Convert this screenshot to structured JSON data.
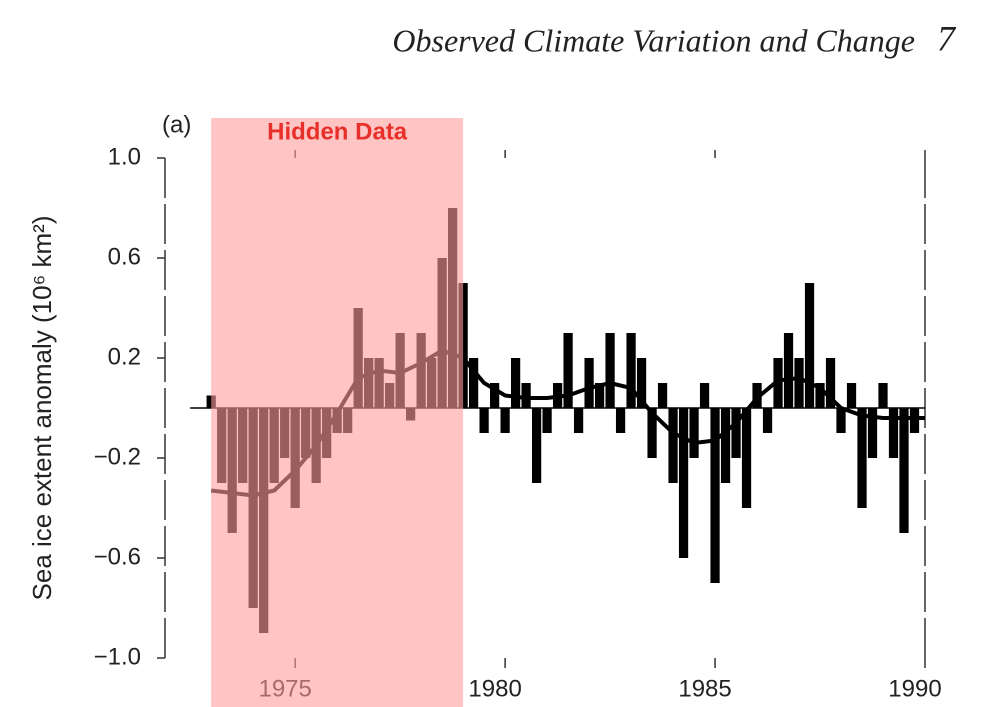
{
  "chart_data": {
    "type": "bar",
    "header": "Observed Climate Variation and Change",
    "page_number": "7",
    "panel_label": "(a)",
    "y_label": "Sea ice extent anomaly (10⁶ km²)",
    "xlim": [
      1971.9,
      1990
    ],
    "ylim": [
      -1,
      1
    ],
    "xticks": [
      1975,
      1980,
      1985,
      1990
    ],
    "yticks": [
      {
        "value": 1,
        "label": "1.0"
      },
      0.6,
      0.2,
      {
        "value": -0.2,
        "label": "−0.2"
      },
      {
        "value": -0.6,
        "label": "−0.6"
      },
      {
        "value": -1,
        "label": "−1.0"
      }
    ],
    "color": "#000000",
    "x": [
      1973,
      1973.25,
      1973.5,
      1973.75,
      1974,
      1974.25,
      1974.5,
      1974.75,
      1975,
      1975.25,
      1975.5,
      1975.75,
      1976,
      1976.25,
      1976.5,
      1976.75,
      1977,
      1977.25,
      1977.5,
      1977.75,
      1978,
      1978.25,
      1978.5,
      1978.75,
      1979,
      1979.25,
      1979.5,
      1979.75,
      1980,
      1980.25,
      1980.5,
      1980.75,
      1981,
      1981.25,
      1981.5,
      1981.75,
      1982,
      1982.25,
      1982.5,
      1982.75,
      1983,
      1983.25,
      1983.5,
      1983.75,
      1984,
      1984.25,
      1984.5,
      1984.75,
      1985,
      1985.25,
      1985.5,
      1985.75,
      1986,
      1986.25,
      1986.5,
      1986.75,
      1987,
      1987.25,
      1987.5,
      1987.75,
      1988,
      1988.25,
      1988.5,
      1988.75,
      1989,
      1989.25,
      1989.5,
      1989.75
    ],
    "values": [
      0.05,
      -0.3,
      -0.5,
      -0.3,
      -0.8,
      -0.9,
      -0.3,
      -0.2,
      -0.4,
      -0.2,
      -0.3,
      -0.2,
      -0.1,
      -0.1,
      0.4,
      0.2,
      0.2,
      0.1,
      0.3,
      -0.05,
      0.3,
      0.2,
      0.6,
      0.8,
      0.5,
      0.2,
      -0.1,
      0.1,
      -0.1,
      0.2,
      0.1,
      -0.3,
      -0.1,
      0.1,
      0.3,
      -0.1,
      0.2,
      0.1,
      0.3,
      -0.1,
      0.3,
      0.2,
      -0.2,
      0.1,
      -0.3,
      -0.6,
      -0.2,
      0.1,
      -0.7,
      -0.3,
      -0.2,
      -0.4,
      0.1,
      -0.1,
      0.2,
      0.3,
      0.2,
      0.5,
      0.1,
      0.2,
      -0.1,
      0.1,
      -0.4,
      -0.2,
      0.1,
      -0.2,
      -0.5,
      -0.1
    ],
    "smooth": {
      "color": "#000000",
      "x": [
        1973,
        1973.5,
        1974,
        1974.5,
        1975,
        1975.5,
        1976,
        1976.5,
        1977,
        1977.5,
        1978,
        1978.5,
        1979,
        1979.5,
        1980,
        1980.5,
        1981,
        1981.5,
        1982,
        1982.5,
        1983,
        1983.5,
        1984,
        1984.5,
        1985,
        1985.5,
        1986,
        1986.5,
        1987,
        1987.5,
        1988,
        1988.5,
        1989,
        1989.5,
        1990
      ],
      "values": [
        -0.33,
        -0.34,
        -0.35,
        -0.33,
        -0.25,
        -0.15,
        -0.02,
        0.12,
        0.15,
        0.14,
        0.18,
        0.23,
        0.2,
        0.1,
        0.05,
        0.04,
        0.04,
        0.05,
        0.08,
        0.1,
        0.08,
        -0.02,
        -0.1,
        -0.14,
        -0.13,
        -0.06,
        0.04,
        0.11,
        0.12,
        0.08,
        0,
        -0.03,
        -0.04,
        -0.04,
        -0.04
      ]
    },
    "annotation": {
      "text": "Hidden Data",
      "x_range": [
        1973,
        1979
      ],
      "color": "#ff9c9c",
      "text_color": "#e8302a"
    }
  }
}
